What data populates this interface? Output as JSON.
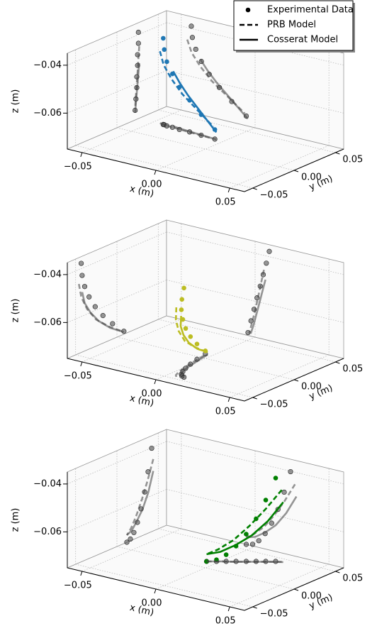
{
  "chart_data": [
    {
      "type": "scatter3d",
      "color": "#1f77b4",
      "projection_color": "#404040",
      "grid": true,
      "legend": "upper right",
      "xlabel": "x (m)",
      "ylabel": "y (m)",
      "zlabel": "z (m)",
      "xlim": [
        -0.06,
        0.06
      ],
      "ylim": [
        -0.06,
        0.06
      ],
      "zlim": [
        -0.075,
        -0.035
      ],
      "xticks": [
        {
          "value": -0.05,
          "label": "−0.05"
        },
        {
          "value": 0,
          "label": "0.00"
        },
        {
          "value": 0.05,
          "label": "0.05"
        }
      ],
      "yticks": [
        {
          "value": -0.05,
          "label": "−0.05"
        },
        {
          "value": 0,
          "label": "0.00"
        },
        {
          "value": 0.05,
          "label": "0.05"
        }
      ],
      "zticks": [
        {
          "value": -0.04,
          "label": "−0.04"
        },
        {
          "value": -0.06,
          "label": "−0.06"
        }
      ],
      "series": [
        {
          "name": "Experimental Data",
          "style": "marker",
          "x": [
            -0.0432,
            -0.0425,
            -0.0402,
            -0.0364,
            -0.0311,
            -0.0242,
            -0.0158,
            -0.006
          ],
          "y": [
            0.026,
            0.026,
            0.025,
            0.025,
            0.024,
            0.024,
            0.023,
            0.022
          ],
          "z": [
            -0.039,
            -0.0436,
            -0.0482,
            -0.0527,
            -0.0573,
            -0.0618,
            -0.0664,
            -0.071
          ]
        },
        {
          "name": "PRB Model",
          "style": "dashed",
          "x": [
            -0.046,
            -0.043,
            -0.037,
            -0.029,
            -0.018,
            -0.007
          ],
          "y": [
            0.027,
            0.026,
            0.025,
            0.024,
            0.023,
            0.022
          ],
          "z": [
            -0.045,
            -0.05,
            -0.055,
            -0.06,
            -0.065,
            -0.07
          ]
        },
        {
          "name": "Cosserat Model",
          "style": "solid",
          "x": [
            -0.037,
            -0.032,
            -0.026,
            -0.019,
            -0.012,
            -0.005
          ],
          "y": [
            0.027,
            0.026,
            0.025,
            0.024,
            0.023,
            0.022
          ],
          "z": [
            -0.052,
            -0.056,
            -0.06,
            -0.064,
            -0.068,
            -0.072
          ]
        }
      ]
    },
    {
      "type": "scatter3d",
      "color": "#bcbd22",
      "projection_color": "#404040",
      "grid": true,
      "xlabel": "x (m)",
      "ylabel": "y (m)",
      "zlabel": "z (m)",
      "xlim": [
        -0.06,
        0.06
      ],
      "ylim": [
        -0.06,
        0.06
      ],
      "zlim": [
        -0.075,
        -0.035
      ],
      "xticks": [
        {
          "value": -0.05,
          "label": "−0.05"
        },
        {
          "value": 0,
          "label": "0.00"
        },
        {
          "value": 0.05,
          "label": "0.05"
        }
      ],
      "yticks": [
        {
          "value": -0.05,
          "label": "−0.05"
        },
        {
          "value": 0,
          "label": "0.00"
        },
        {
          "value": 0.05,
          "label": "0.05"
        }
      ],
      "zticks": [
        {
          "value": -0.04,
          "label": "−0.04"
        },
        {
          "value": -0.06,
          "label": "−0.06"
        }
      ],
      "series": [
        {
          "style": "marker",
          "x": [
            0.0096,
            0.0076,
            0.0055,
            0.0035,
            0.0013,
            -0.0007,
            -0.0028,
            -0.0048
          ],
          "y": [
            -0.0432,
            -0.0421,
            -0.039,
            -0.0337,
            -0.0263,
            -0.0169,
            -0.0053,
            0.0084
          ],
          "z": [
            -0.0378,
            -0.043,
            -0.0481,
            -0.0532,
            -0.0584,
            -0.0635,
            -0.0686,
            -0.0738
          ]
        },
        {
          "style": "dashed",
          "x": [
            0.006,
            0.004,
            0.002,
            0.0,
            -0.002,
            -0.004
          ],
          "y": [
            -0.046,
            -0.043,
            -0.036,
            -0.025,
            -0.01,
            0.008
          ],
          "z": [
            -0.046,
            -0.052,
            -0.058,
            -0.064,
            -0.069,
            -0.074
          ]
        },
        {
          "style": "solid",
          "x": [
            0.007,
            0.005,
            0.003,
            0.001,
            -0.001,
            -0.003
          ],
          "y": [
            -0.042,
            -0.039,
            -0.032,
            -0.022,
            -0.008,
            0.008
          ],
          "z": [
            -0.05,
            -0.055,
            -0.06,
            -0.065,
            -0.07,
            -0.074
          ]
        }
      ]
    },
    {
      "type": "scatter3d",
      "color": "#008000",
      "projection_color": "#404040",
      "grid": true,
      "xlabel": "x (m)",
      "ylabel": "y (m)",
      "zlabel": "z (m)",
      "xlim": [
        -0.06,
        0.06
      ],
      "ylim": [
        -0.06,
        0.06
      ],
      "zlim": [
        -0.075,
        -0.035
      ],
      "xticks": [
        {
          "value": -0.05,
          "label": "−0.05"
        },
        {
          "value": 0,
          "label": "0.00"
        },
        {
          "value": 0.05,
          "label": "0.05"
        }
      ],
      "yticks": [
        {
          "value": -0.05,
          "label": "−0.05"
        },
        {
          "value": 0,
          "label": "0.00"
        },
        {
          "value": 0.05,
          "label": "0.05"
        }
      ],
      "zticks": [
        {
          "value": -0.04,
          "label": "−0.04"
        },
        {
          "value": -0.06,
          "label": "−0.06"
        }
      ],
      "series": [
        {
          "style": "marker",
          "x": [
            0.024,
            0.0197,
            0.0155,
            0.0112,
            0.0068,
            0.0025,
            -0.0017,
            -0.006
          ],
          "y": [
            0.042,
            0.0377,
            0.0335,
            0.0292,
            0.0248,
            0.0205,
            0.0163,
            0.012
          ],
          "z": [
            -0.0402,
            -0.0494,
            -0.0572,
            -0.0636,
            -0.0686,
            -0.0722,
            -0.0743,
            -0.075
          ]
        },
        {
          "style": "dashed",
          "x": [
            0.027,
            0.02,
            0.013,
            0.006,
            -0.001,
            -0.006
          ],
          "y": [
            0.044,
            0.037,
            0.03,
            0.023,
            0.017,
            0.012
          ],
          "z": [
            -0.045,
            -0.053,
            -0.06,
            -0.066,
            -0.07,
            -0.072
          ]
        },
        {
          "style": "solid",
          "x": [
            0.028,
            0.021,
            0.014,
            0.007,
            0.0,
            -0.006
          ],
          "y": [
            0.044,
            0.038,
            0.031,
            0.024,
            0.018,
            0.012
          ],
          "z": [
            -0.05,
            -0.058,
            -0.064,
            -0.068,
            -0.071,
            -0.072
          ]
        }
      ]
    }
  ]
}
